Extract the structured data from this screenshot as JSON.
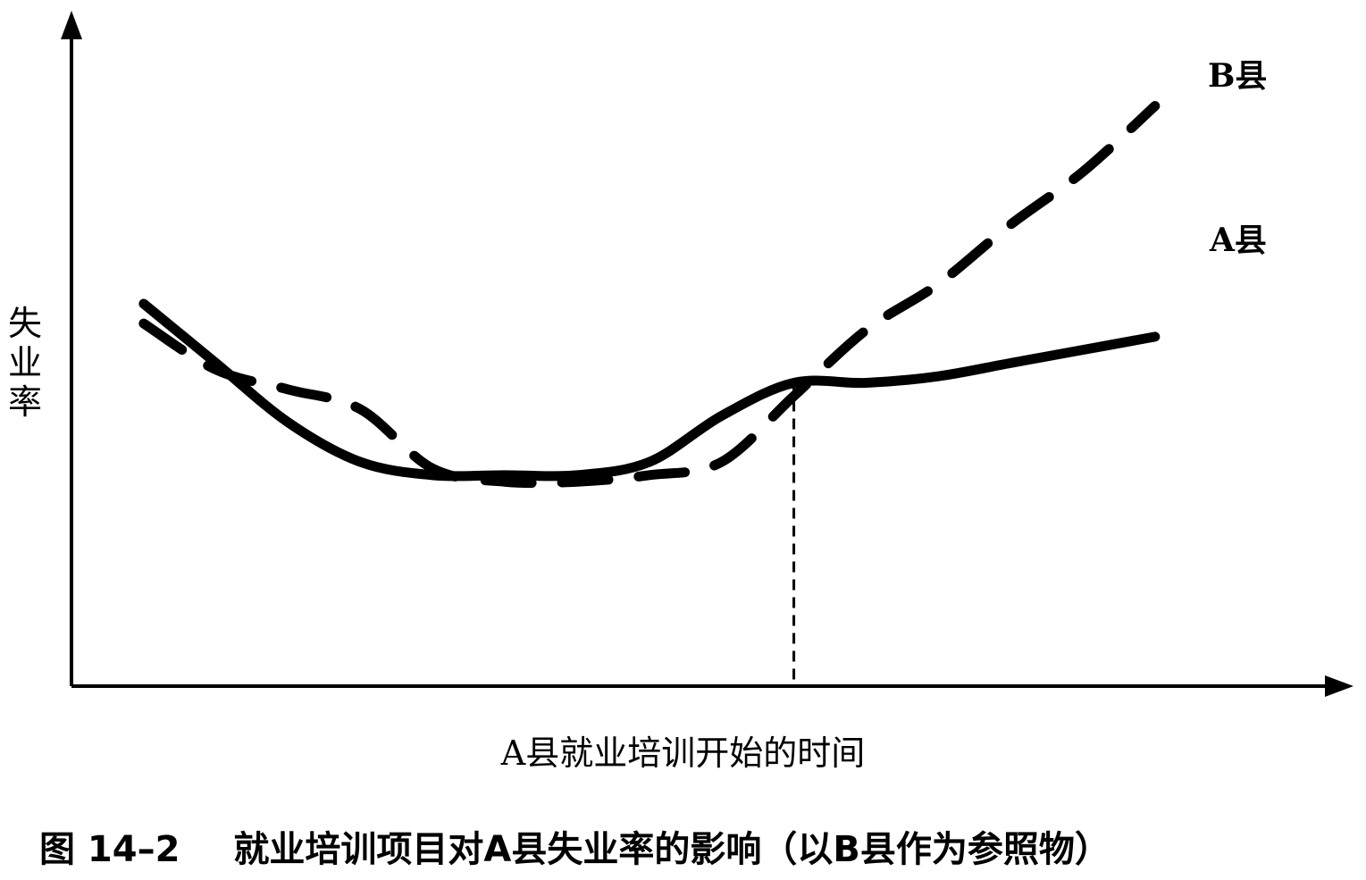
{
  "chart_data": {
    "type": "line",
    "title": "",
    "xlabel": "A县就业培训开始的时间",
    "ylabel": "失业率",
    "x": [
      0,
      1,
      2,
      3,
      4,
      5,
      6,
      7,
      8,
      9,
      10,
      11,
      12,
      13,
      14
    ],
    "xlim": [
      -1,
      16.5
    ],
    "ylim": [
      0,
      10
    ],
    "intervention_x": 9,
    "series": [
      {
        "name": "A县",
        "style": "solid",
        "values": [
          5.8,
          4.9,
          4.0,
          3.4,
          3.2,
          3.2,
          3.2,
          3.4,
          4.1,
          4.6,
          4.6,
          4.7,
          4.9,
          5.1,
          5.3
        ]
      },
      {
        "name": "B县",
        "style": "dashed",
        "values": [
          5.5,
          4.8,
          4.5,
          4.2,
          3.3,
          3.1,
          3.1,
          3.2,
          3.4,
          4.4,
          5.4,
          6.1,
          7.0,
          7.8,
          8.8
        ]
      }
    ],
    "grid": false,
    "legend": "end-of-line labels"
  },
  "caption": {
    "number": "图 14–2",
    "text": "就业培训项目对A县失业率的影响（以B县作为参照物）"
  }
}
